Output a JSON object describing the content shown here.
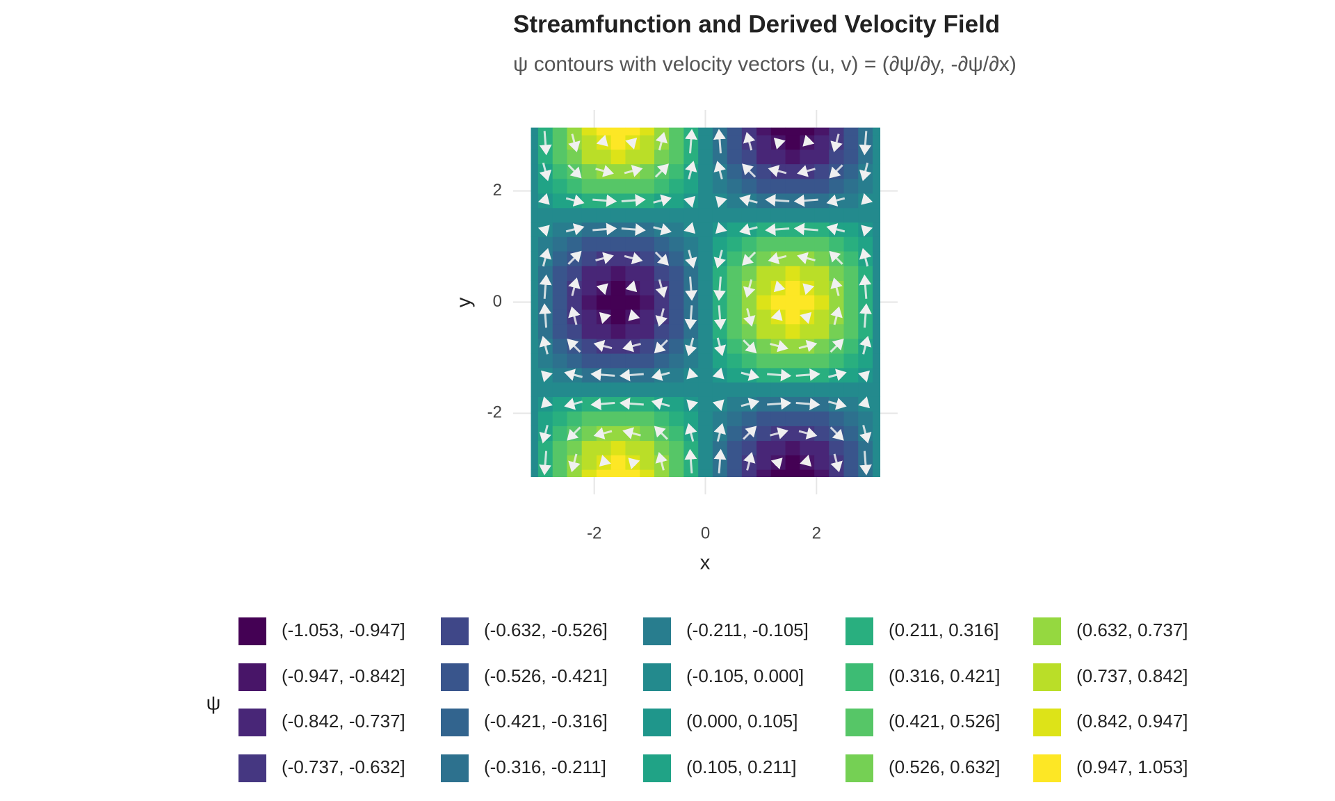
{
  "chart_data": {
    "type": "contour",
    "title": "Streamfunction and Derived Velocity Field",
    "subtitle": "ψ contours with velocity vectors (u, v) = (∂ψ/∂y, -∂ψ/∂x)",
    "x_label": "x",
    "y_label": "y",
    "xlim": [
      -3.46,
      3.46
    ],
    "ylim": [
      -3.46,
      3.46
    ],
    "xticks": [
      -2,
      0,
      2
    ],
    "yticks": [
      -2,
      0,
      2
    ],
    "grid": true,
    "x": [
      -3.14,
      -2.88,
      -2.62,
      -2.36,
      -2.09,
      -1.83,
      -1.57,
      -1.31,
      -1.05,
      -0.79,
      -0.52,
      -0.26,
      0,
      0.26,
      0.52,
      0.79,
      1.05,
      1.31,
      1.57,
      1.83,
      2.09,
      2.36,
      2.62,
      2.88,
      3.14
    ],
    "y": [
      -3.14,
      -2.88,
      -2.62,
      -2.36,
      -2.09,
      -1.83,
      -1.57,
      -1.31,
      -1.05,
      -0.79,
      -0.52,
      -0.26,
      0,
      0.26,
      0.52,
      0.79,
      1.05,
      1.31,
      1.57,
      1.83,
      2.09,
      2.36,
      2.62,
      2.88,
      3.14
    ],
    "z": [
      [
        0,
        0.26,
        0.5,
        0.71,
        0.87,
        0.97,
        1,
        0.97,
        0.87,
        0.71,
        0.5,
        0.26,
        0,
        -0.26,
        -0.5,
        -0.71,
        -0.87,
        -0.97,
        -1,
        -0.97,
        -0.87,
        -0.71,
        -0.5,
        -0.26,
        0
      ],
      [
        0,
        0.25,
        0.48,
        0.69,
        0.84,
        0.93,
        0.97,
        0.93,
        0.84,
        0.69,
        0.48,
        0.25,
        0,
        -0.25,
        -0.48,
        -0.69,
        -0.84,
        -0.93,
        -0.97,
        -0.93,
        -0.84,
        -0.69,
        -0.48,
        -0.25,
        0
      ],
      [
        0,
        0.23,
        0.43,
        0.61,
        0.75,
        0.84,
        0.87,
        0.84,
        0.75,
        0.61,
        0.43,
        0.23,
        0,
        -0.23,
        -0.43,
        -0.61,
        -0.75,
        -0.84,
        -0.87,
        -0.84,
        -0.75,
        -0.61,
        -0.43,
        -0.23,
        0
      ],
      [
        0,
        0.18,
        0.35,
        0.5,
        0.61,
        0.69,
        0.71,
        0.69,
        0.61,
        0.5,
        0.35,
        0.18,
        0,
        -0.18,
        -0.35,
        -0.5,
        -0.61,
        -0.69,
        -0.71,
        -0.69,
        -0.61,
        -0.5,
        -0.35,
        -0.18,
        0
      ],
      [
        0,
        0.13,
        0.25,
        0.35,
        0.43,
        0.48,
        0.5,
        0.48,
        0.43,
        0.35,
        0.25,
        0.13,
        0,
        -0.13,
        -0.25,
        -0.35,
        -0.43,
        -0.48,
        -0.5,
        -0.48,
        -0.43,
        -0.35,
        -0.25,
        -0.13,
        0
      ],
      [
        0,
        0.07,
        0.13,
        0.18,
        0.23,
        0.25,
        0.26,
        0.25,
        0.23,
        0.18,
        0.13,
        0.07,
        0,
        -0.07,
        -0.13,
        -0.18,
        -0.23,
        -0.25,
        -0.26,
        -0.25,
        -0.23,
        -0.18,
        -0.13,
        -0.07,
        0
      ],
      [
        0,
        0,
        0,
        0,
        0,
        0,
        0,
        0,
        0,
        0,
        0,
        0,
        0,
        0,
        0,
        0,
        0,
        0,
        0,
        0,
        0,
        0,
        0,
        0,
        0
      ],
      [
        0,
        -0.07,
        -0.13,
        -0.18,
        -0.23,
        -0.25,
        -0.26,
        -0.25,
        -0.23,
        -0.18,
        -0.13,
        -0.07,
        0,
        0.07,
        0.13,
        0.18,
        0.23,
        0.25,
        0.26,
        0.25,
        0.23,
        0.18,
        0.13,
        0.07,
        0
      ],
      [
        0,
        -0.13,
        -0.25,
        -0.35,
        -0.43,
        -0.48,
        -0.5,
        -0.48,
        -0.43,
        -0.35,
        -0.25,
        -0.13,
        0,
        0.13,
        0.25,
        0.35,
        0.43,
        0.48,
        0.5,
        0.48,
        0.43,
        0.35,
        0.25,
        0.13,
        0
      ],
      [
        0,
        -0.18,
        -0.35,
        -0.5,
        -0.61,
        -0.69,
        -0.71,
        -0.69,
        -0.61,
        -0.5,
        -0.35,
        -0.18,
        0,
        0.18,
        0.35,
        0.5,
        0.61,
        0.69,
        0.71,
        0.69,
        0.61,
        0.5,
        0.35,
        0.18,
        0
      ],
      [
        0,
        -0.23,
        -0.43,
        -0.61,
        -0.75,
        -0.84,
        -0.87,
        -0.84,
        -0.75,
        -0.61,
        -0.43,
        -0.23,
        0,
        0.23,
        0.43,
        0.61,
        0.75,
        0.84,
        0.87,
        0.84,
        0.75,
        0.61,
        0.43,
        0.23,
        0
      ],
      [
        0,
        -0.25,
        -0.48,
        -0.69,
        -0.84,
        -0.93,
        -0.97,
        -0.93,
        -0.84,
        -0.69,
        -0.48,
        -0.25,
        0,
        0.25,
        0.48,
        0.69,
        0.84,
        0.93,
        0.97,
        0.93,
        0.84,
        0.69,
        0.48,
        0.25,
        0
      ],
      [
        0,
        -0.26,
        -0.5,
        -0.71,
        -0.87,
        -0.97,
        -1,
        -0.97,
        -0.87,
        -0.71,
        -0.5,
        -0.26,
        0,
        0.26,
        0.5,
        0.71,
        0.87,
        0.97,
        1,
        0.97,
        0.87,
        0.71,
        0.5,
        0.26,
        0
      ],
      [
        0,
        -0.25,
        -0.48,
        -0.69,
        -0.84,
        -0.93,
        -0.97,
        -0.93,
        -0.84,
        -0.69,
        -0.48,
        -0.25,
        0,
        0.25,
        0.48,
        0.69,
        0.84,
        0.93,
        0.97,
        0.93,
        0.84,
        0.69,
        0.48,
        0.25,
        0
      ],
      [
        0,
        -0.23,
        -0.43,
        -0.61,
        -0.75,
        -0.84,
        -0.87,
        -0.84,
        -0.75,
        -0.61,
        -0.43,
        -0.23,
        0,
        0.23,
        0.43,
        0.61,
        0.75,
        0.84,
        0.87,
        0.84,
        0.75,
        0.61,
        0.43,
        0.23,
        0
      ],
      [
        0,
        -0.18,
        -0.35,
        -0.5,
        -0.61,
        -0.69,
        -0.71,
        -0.69,
        -0.61,
        -0.5,
        -0.35,
        -0.18,
        0,
        0.18,
        0.35,
        0.5,
        0.61,
        0.69,
        0.71,
        0.69,
        0.61,
        0.5,
        0.35,
        0.18,
        0
      ],
      [
        0,
        -0.13,
        -0.25,
        -0.35,
        -0.43,
        -0.48,
        -0.5,
        -0.48,
        -0.43,
        -0.35,
        -0.25,
        -0.13,
        0,
        0.13,
        0.25,
        0.35,
        0.43,
        0.48,
        0.5,
        0.48,
        0.43,
        0.35,
        0.25,
        0.13,
        0
      ],
      [
        0,
        -0.07,
        -0.13,
        -0.18,
        -0.23,
        -0.25,
        -0.26,
        -0.25,
        -0.23,
        -0.18,
        -0.13,
        -0.07,
        0,
        0.07,
        0.13,
        0.18,
        0.23,
        0.25,
        0.26,
        0.25,
        0.23,
        0.18,
        0.13,
        0.07,
        0
      ],
      [
        0,
        0,
        0,
        0,
        0,
        0,
        0,
        0,
        0,
        0,
        0,
        0,
        0,
        0,
        0,
        0,
        0,
        0,
        0,
        0,
        0,
        0,
        0,
        0,
        0
      ],
      [
        0,
        0.07,
        0.13,
        0.18,
        0.23,
        0.25,
        0.26,
        0.25,
        0.23,
        0.18,
        0.13,
        0.07,
        0,
        -0.07,
        -0.13,
        -0.18,
        -0.23,
        -0.25,
        -0.26,
        -0.25,
        -0.23,
        -0.18,
        -0.13,
        -0.07,
        0
      ],
      [
        0,
        0.13,
        0.25,
        0.35,
        0.43,
        0.48,
        0.5,
        0.48,
        0.43,
        0.35,
        0.25,
        0.13,
        0,
        -0.13,
        -0.25,
        -0.35,
        -0.43,
        -0.48,
        -0.5,
        -0.48,
        -0.43,
        -0.35,
        -0.25,
        -0.13,
        0
      ],
      [
        0,
        0.18,
        0.35,
        0.5,
        0.61,
        0.69,
        0.71,
        0.69,
        0.61,
        0.5,
        0.35,
        0.18,
        0,
        -0.18,
        -0.35,
        -0.5,
        -0.61,
        -0.69,
        -0.71,
        -0.69,
        -0.61,
        -0.5,
        -0.35,
        -0.18,
        0
      ],
      [
        0,
        0.23,
        0.43,
        0.61,
        0.75,
        0.84,
        0.87,
        0.84,
        0.75,
        0.61,
        0.43,
        0.23,
        0,
        -0.23,
        -0.43,
        -0.61,
        -0.75,
        -0.84,
        -0.87,
        -0.84,
        -0.75,
        -0.61,
        -0.43,
        -0.23,
        0
      ],
      [
        0,
        0.25,
        0.48,
        0.69,
        0.84,
        0.93,
        0.97,
        0.93,
        0.84,
        0.69,
        0.48,
        0.25,
        0,
        -0.25,
        -0.48,
        -0.69,
        -0.84,
        -0.93,
        -0.97,
        -0.93,
        -0.84,
        -0.69,
        -0.48,
        -0.25,
        0
      ],
      [
        0,
        0.26,
        0.5,
        0.71,
        0.87,
        0.97,
        1,
        0.97,
        0.87,
        0.71,
        0.5,
        0.26,
        0,
        -0.26,
        -0.5,
        -0.71,
        -0.87,
        -0.97,
        -1,
        -0.97,
        -0.87,
        -0.71,
        -0.5,
        -0.26,
        0
      ]
    ],
    "vectors": {
      "color": "#f0f0f0",
      "x": [
        -2.88,
        -2.36,
        -1.83,
        -1.31,
        -0.79,
        -0.26,
        0.26,
        0.79,
        1.31,
        1.83,
        2.36,
        2.88
      ],
      "y": [
        -2.88,
        -2.36,
        -1.83,
        -1.31,
        -0.79,
        -0.26,
        0.26,
        0.79,
        1.31,
        1.83,
        2.36,
        2.88
      ],
      "u": [
        [
          -0.07,
          -0.18,
          -0.25,
          -0.25,
          -0.18,
          -0.07,
          0.07,
          0.18,
          0.25,
          0.25,
          0.18,
          0.07
        ],
        [
          -0.18,
          -0.5,
          -0.69,
          -0.69,
          -0.5,
          -0.18,
          0.18,
          0.5,
          0.69,
          0.69,
          0.5,
          0.18
        ],
        [
          -0.25,
          -0.69,
          -0.94,
          -0.94,
          -0.69,
          -0.25,
          0.25,
          0.69,
          0.94,
          0.94,
          0.69,
          0.25
        ],
        [
          -0.25,
          -0.69,
          -0.94,
          -0.94,
          -0.69,
          -0.25,
          0.25,
          0.69,
          0.94,
          0.94,
          0.69,
          0.25
        ],
        [
          -0.18,
          -0.5,
          -0.69,
          -0.69,
          -0.5,
          -0.18,
          0.18,
          0.5,
          0.69,
          0.69,
          0.5,
          0.18
        ],
        [
          -0.07,
          -0.18,
          -0.25,
          -0.25,
          -0.18,
          -0.07,
          0.07,
          0.18,
          0.25,
          0.25,
          0.18,
          0.07
        ],
        [
          0.07,
          0.18,
          0.25,
          0.25,
          0.18,
          0.07,
          -0.07,
          -0.18,
          -0.25,
          -0.25,
          -0.18,
          -0.07
        ],
        [
          0.18,
          0.5,
          0.69,
          0.69,
          0.5,
          0.18,
          -0.18,
          -0.5,
          -0.69,
          -0.69,
          -0.5,
          -0.18
        ],
        [
          0.25,
          0.69,
          0.94,
          0.94,
          0.69,
          0.25,
          -0.25,
          -0.69,
          -0.94,
          -0.94,
          -0.69,
          -0.25
        ],
        [
          0.25,
          0.69,
          0.94,
          0.94,
          0.69,
          0.25,
          -0.25,
          -0.69,
          -0.94,
          -0.94,
          -0.69,
          -0.25
        ],
        [
          0.18,
          0.5,
          0.69,
          0.69,
          0.5,
          0.18,
          -0.18,
          -0.5,
          -0.69,
          -0.69,
          -0.5,
          -0.18
        ],
        [
          0.07,
          0.18,
          0.25,
          0.25,
          0.18,
          0.07,
          -0.07,
          -0.18,
          -0.25,
          -0.25,
          -0.18,
          -0.07
        ]
      ],
      "v": [
        [
          -0.94,
          -0.69,
          -0.25,
          0.25,
          0.69,
          0.94,
          0.94,
          0.69,
          0.25,
          -0.25,
          -0.69,
          -0.94
        ],
        [
          -0.69,
          -0.5,
          -0.18,
          0.18,
          0.5,
          0.69,
          0.69,
          0.5,
          0.18,
          -0.18,
          -0.5,
          -0.69
        ],
        [
          -0.25,
          -0.18,
          -0.07,
          0.07,
          0.18,
          0.25,
          0.25,
          0.18,
          0.07,
          -0.07,
          -0.18,
          -0.25
        ],
        [
          0.25,
          0.18,
          0.07,
          -0.07,
          -0.18,
          -0.25,
          -0.25,
          -0.18,
          -0.07,
          0.07,
          0.18,
          0.25
        ],
        [
          0.69,
          0.5,
          0.18,
          -0.18,
          -0.5,
          -0.69,
          -0.69,
          -0.5,
          -0.18,
          0.18,
          0.5,
          0.69
        ],
        [
          0.94,
          0.69,
          0.25,
          -0.25,
          -0.69,
          -0.94,
          -0.94,
          -0.69,
          -0.25,
          0.25,
          0.69,
          0.94
        ],
        [
          0.94,
          0.69,
          0.25,
          -0.25,
          -0.69,
          -0.94,
          -0.94,
          -0.69,
          -0.25,
          0.25,
          0.69,
          0.94
        ],
        [
          0.69,
          0.5,
          0.18,
          -0.18,
          -0.5,
          -0.69,
          -0.69,
          -0.5,
          -0.18,
          0.18,
          0.5,
          0.69
        ],
        [
          0.25,
          0.18,
          0.07,
          -0.07,
          -0.18,
          -0.25,
          -0.25,
          -0.18,
          -0.07,
          0.07,
          0.18,
          0.25
        ],
        [
          -0.25,
          -0.18,
          -0.07,
          0.07,
          0.18,
          0.25,
          0.25,
          0.18,
          0.07,
          -0.07,
          -0.18,
          -0.25
        ],
        [
          -0.69,
          -0.5,
          -0.18,
          0.18,
          0.5,
          0.69,
          0.69,
          0.5,
          0.18,
          -0.18,
          -0.5,
          -0.69
        ],
        [
          -0.94,
          -0.69,
          -0.25,
          0.25,
          0.69,
          0.94,
          0.94,
          0.69,
          0.25,
          -0.25,
          -0.69,
          -0.94
        ]
      ]
    },
    "legend": {
      "title": "ψ",
      "breaks": [
        -1.053,
        -0.947,
        -0.842,
        -0.737,
        -0.632,
        -0.526,
        -0.421,
        -0.316,
        -0.211,
        -0.105,
        0,
        0.105,
        0.211,
        0.316,
        0.421,
        0.526,
        0.632,
        0.737,
        0.842,
        0.947,
        1.053
      ],
      "labels": [
        "(-1.053, -0.947]",
        "(-0.947, -0.842]",
        "(-0.842, -0.737]",
        "(-0.737, -0.632]",
        "(-0.632, -0.526]",
        "(-0.526, -0.421]",
        "(-0.421, -0.316]",
        "(-0.316, -0.211]",
        "(-0.211, -0.105]",
        "(-0.105, 0.000]",
        "(0.000, 0.105]",
        "(0.105, 0.211]",
        "(0.211, 0.316]",
        "(0.316, 0.421]",
        "(0.421, 0.526]",
        "(0.526, 0.632]",
        "(0.632, 0.737]",
        "(0.737, 0.842]",
        "(0.842, 0.947]",
        "(0.947, 1.053]"
      ],
      "colors": [
        "#440154",
        "#481568",
        "#482677",
        "#453781",
        "#3f4788",
        "#39558c",
        "#32648e",
        "#2d718e",
        "#287d8e",
        "#238a8d",
        "#1f968b",
        "#20a386",
        "#29af7f",
        "#3dbc74",
        "#56c667",
        "#75d054",
        "#95d840",
        "#bade28",
        "#dde318",
        "#fde725"
      ]
    }
  }
}
